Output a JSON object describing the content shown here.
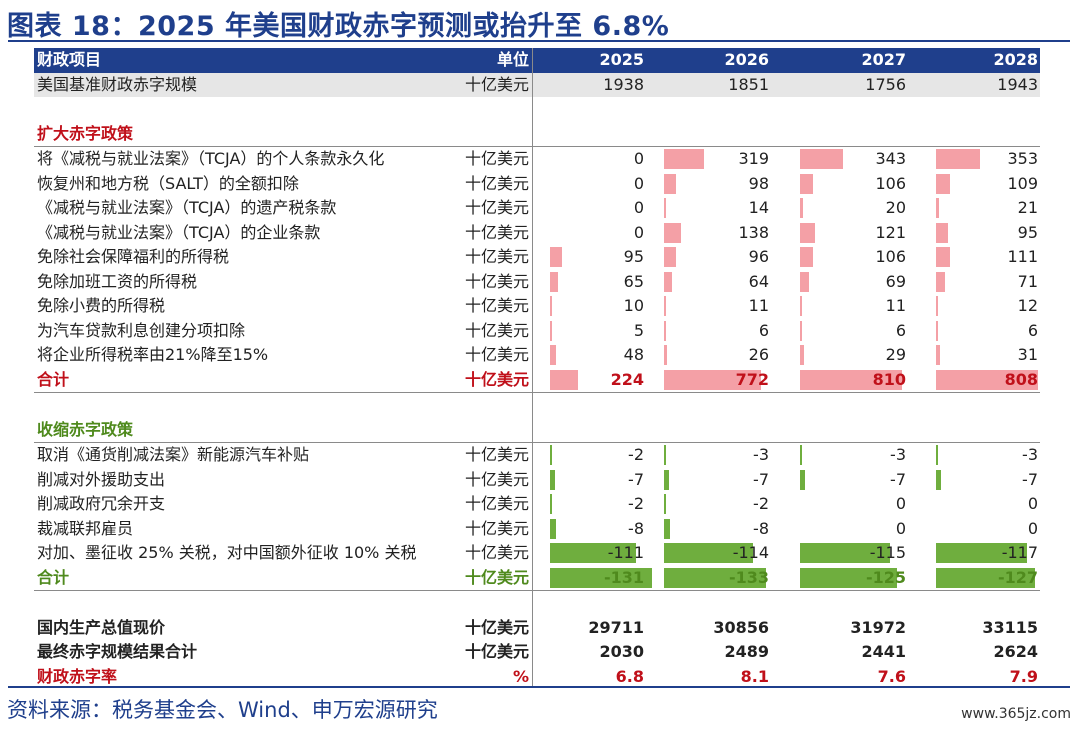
{
  "title": "图表 18：2025 年美国财政赤字预测或抬升至 6.8%",
  "header": {
    "item": "财政项目",
    "unit": "单位",
    "years": [
      "2025",
      "2026",
      "2027",
      "2028"
    ]
  },
  "baseline": {
    "label": "美国基准财政赤字规模",
    "unit": "十亿美元",
    "values": [
      "1938",
      "1851",
      "1756",
      "1943"
    ]
  },
  "expand": {
    "section_label": "扩大赤字政策",
    "rows": [
      {
        "label": "将《减税与就业法案》（TCJA）的个人条款永久化",
        "unit": "十亿美元",
        "values": [
          0,
          319,
          343,
          353
        ]
      },
      {
        "label": "恢复州和地方税（SALT）的全额扣除",
        "unit": "十亿美元",
        "values": [
          0,
          98,
          106,
          109
        ]
      },
      {
        "label": "《减税与就业法案》（TCJA）的遗产税条款",
        "unit": "十亿美元",
        "values": [
          0,
          14,
          20,
          21
        ]
      },
      {
        "label": "《减税与就业法案》（TCJA）的企业条款",
        "unit": "十亿美元",
        "values": [
          0,
          138,
          121,
          95
        ]
      },
      {
        "label": "免除社会保障福利的所得税",
        "unit": "十亿美元",
        "values": [
          95,
          96,
          106,
          111
        ]
      },
      {
        "label": "免除加班工资的所得税",
        "unit": "十亿美元",
        "values": [
          65,
          64,
          69,
          71
        ]
      },
      {
        "label": "免除小费的所得税",
        "unit": "十亿美元",
        "values": [
          10,
          11,
          11,
          12
        ]
      },
      {
        "label": "为汽车贷款利息创建分项扣除",
        "unit": "十亿美元",
        "values": [
          5,
          6,
          6,
          6
        ]
      },
      {
        "label": "将企业所得税率由21%降至15%",
        "unit": "十亿美元",
        "values": [
          48,
          26,
          29,
          31
        ]
      }
    ],
    "total": {
      "label": "合计",
      "unit": "十亿美元",
      "values": [
        224,
        772,
        810,
        808
      ]
    }
  },
  "shrink": {
    "section_label": "收缩赤字政策",
    "rows": [
      {
        "label": "取消《通货削减法案》新能源汽车补贴",
        "unit": "十亿美元",
        "values": [
          -2,
          -3,
          -3,
          -3
        ]
      },
      {
        "label": "削减对外援助支出",
        "unit": "十亿美元",
        "values": [
          -7,
          -7,
          -7,
          -7
        ]
      },
      {
        "label": "削减政府冗余开支",
        "unit": "十亿美元",
        "values": [
          -2,
          -2,
          0,
          0
        ]
      },
      {
        "label": "裁减联邦雇员",
        "unit": "十亿美元",
        "values": [
          -8,
          -8,
          0,
          0
        ]
      },
      {
        "label": "对加、墨征收 25% 关税，对中国额外征收 10% 关税",
        "unit": "十亿美元",
        "values": [
          -111,
          -114,
          -115,
          -117
        ]
      }
    ],
    "total": {
      "label": "合计",
      "unit": "十亿美元",
      "values": [
        -131,
        -133,
        -125,
        -127
      ]
    }
  },
  "summary": [
    {
      "label": "国内生产总值现价",
      "unit": "十亿美元",
      "values": [
        "29711",
        "30856",
        "31972",
        "33115"
      ]
    },
    {
      "label": "最终赤字规模结果合计",
      "unit": "十亿美元",
      "values": [
        "2030",
        "2489",
        "2441",
        "2624"
      ]
    }
  ],
  "rate": {
    "label": "财政赤字率",
    "unit": "%",
    "values": [
      "6.8",
      "8.1",
      "7.6",
      "7.9"
    ]
  },
  "bar_scale": {
    "pos_max": 810,
    "neg_max": 131
  },
  "colors": {
    "brand_blue": "#1f3f8c",
    "bar_positive": "#f4a0a6",
    "bar_negative": "#6fae3e",
    "red_text": "#c0101a",
    "green_text": "#4f8a1d"
  },
  "source": "资料来源：税务基金会、Wind、申万宏源研究",
  "watermark": "www.365jz.com"
}
